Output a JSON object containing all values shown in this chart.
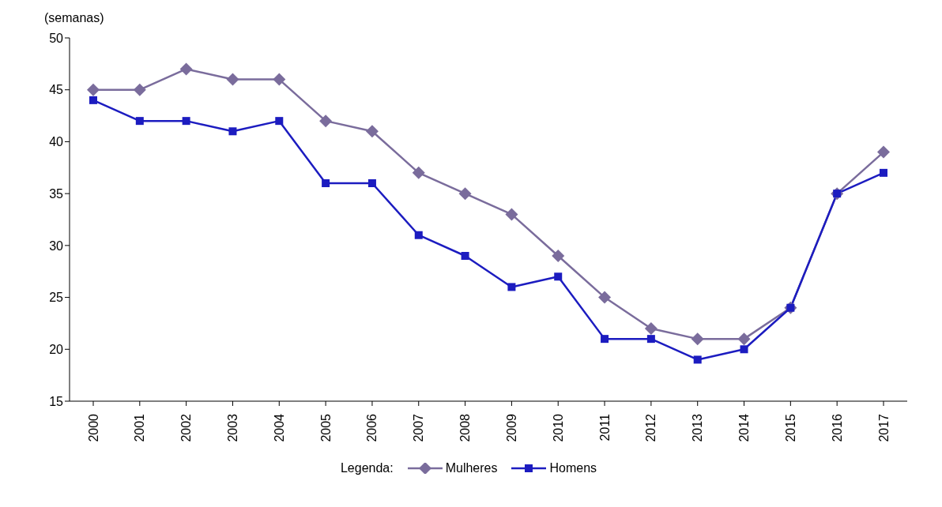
{
  "chart_data": {
    "type": "line",
    "ylabel": "(semanas)",
    "legend_title": "Legenda:",
    "legend": "bottom",
    "grid": false,
    "categories": [
      "2000",
      "2001",
      "2002",
      "2003",
      "2004",
      "2005",
      "2006",
      "2007",
      "2008",
      "2009",
      "2010",
      "2011",
      "2012",
      "2013",
      "2014",
      "2015",
      "2016",
      "2017"
    ],
    "ylim": [
      15,
      50
    ],
    "yticks": [
      15,
      20,
      25,
      30,
      35,
      40,
      45,
      50
    ],
    "series": [
      {
        "name": "Mulheres",
        "color": "#7a6c9c",
        "marker": "diamond",
        "values": [
          45,
          45,
          47,
          46,
          46,
          42,
          41,
          37,
          35,
          33,
          29,
          25,
          22,
          21,
          21,
          24,
          35,
          39
        ]
      },
      {
        "name": "Homens",
        "color": "#1c1cc0",
        "marker": "square",
        "values": [
          44,
          42,
          42,
          41,
          42,
          36,
          36,
          31,
          29,
          26,
          27,
          21,
          21,
          19,
          20,
          24,
          35,
          37
        ]
      }
    ]
  }
}
